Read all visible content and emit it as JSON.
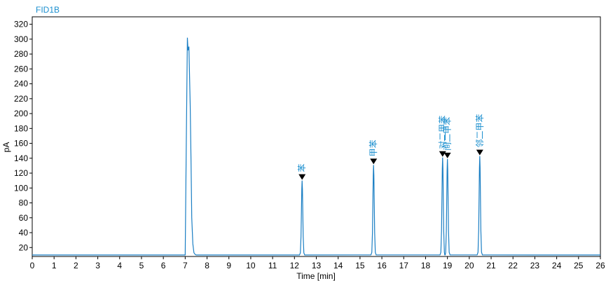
{
  "window": {
    "title": "FID1B"
  },
  "chart_data": {
    "type": "line",
    "title": "FID1B",
    "xlabel": "Time [min]",
    "ylabel": "pA",
    "xlim": [
      0,
      26
    ],
    "ylim": [
      8,
      330
    ],
    "x_ticks": [
      0,
      1,
      2,
      3,
      4,
      5,
      6,
      7,
      8,
      9,
      10,
      11,
      12,
      13,
      14,
      15,
      16,
      17,
      18,
      19,
      20,
      21,
      22,
      23,
      24,
      25,
      26
    ],
    "y_ticks": [
      20,
      40,
      60,
      80,
      100,
      120,
      140,
      160,
      180,
      200,
      220,
      240,
      260,
      280,
      300,
      320
    ],
    "grid": false,
    "baseline": 10,
    "line_color": "#1b7fc4",
    "series": [
      {
        "x": [
          0,
          7.0,
          7.05,
          7.1,
          7.13,
          7.17,
          7.2,
          7.23,
          7.27,
          7.3,
          7.35,
          7.4,
          7.45,
          7.5,
          26
        ],
        "y": [
          10,
          10,
          160,
          302,
          285,
          290,
          250,
          210,
          130,
          60,
          25,
          13,
          11,
          10,
          10
        ]
      }
    ],
    "peaks": [
      {
        "label": "苯",
        "time": 12.35,
        "height": 110
      },
      {
        "label": "甲苯",
        "time": 15.62,
        "height": 131
      },
      {
        "label": "对二甲苯",
        "time": 18.78,
        "height": 141
      },
      {
        "label": "间二甲苯",
        "time": 19.0,
        "height": 139
      },
      {
        "label": "邻二甲苯",
        "time": 20.48,
        "height": 143
      }
    ]
  }
}
